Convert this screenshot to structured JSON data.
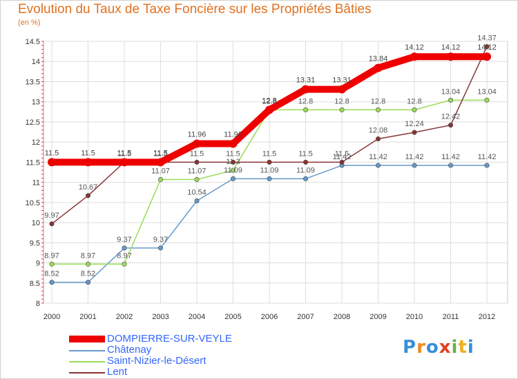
{
  "title": "Evolution du Taux de Taxe Foncière sur les Propriétés Bâties",
  "subtitle": "(en %)",
  "logo": {
    "letters": [
      "P",
      "r",
      "o",
      "x",
      "i",
      "t",
      "i"
    ],
    "colors": [
      "#3a8fd8",
      "#f08a20",
      "#3a8fd8",
      "#e04020",
      "#6ab04c",
      "#f0b020",
      "#3a8fd8"
    ]
  },
  "chart_data": {
    "type": "line",
    "x": [
      "2000",
      "2001",
      "2002",
      "2003",
      "2004",
      "2005",
      "2006",
      "2007",
      "2008",
      "2009",
      "2010",
      "2011",
      "2012"
    ],
    "ylim": [
      8,
      14.5
    ],
    "yticks": [
      "8",
      "8.5",
      "9",
      "9.5",
      "10",
      "10.5",
      "11",
      "11.5",
      "12",
      "12.5",
      "13",
      "13.5",
      "14",
      "14.5"
    ],
    "grid": true,
    "legend_position": "bottom-left",
    "series": [
      {
        "name": "DOMPIERRE-SUR-VEYLE",
        "color": "#ee0000",
        "values": [
          11.5,
          11.5,
          11.5,
          11.5,
          11.96,
          11.96,
          12.8,
          13.31,
          13.31,
          13.84,
          14.12,
          14.12,
          14.12
        ],
        "labels": [
          "11.5",
          "11.5",
          "11.5",
          "11.5",
          "11.96",
          "11.96",
          "12.8",
          "13.31",
          "13.31",
          "13.84",
          "14.12",
          "14.12",
          "14.12"
        ]
      },
      {
        "name": "Châtenay",
        "color": "#6699cc",
        "values": [
          8.52,
          8.52,
          9.37,
          9.37,
          10.54,
          11.09,
          11.09,
          11.09,
          11.42,
          11.42,
          11.42,
          11.42,
          11.42
        ],
        "labels": [
          "8.52",
          "8.52",
          "9.37",
          "9.37",
          "10.54",
          "11.09",
          "11.09",
          "11.09",
          "11.42",
          "11.42",
          "11.42",
          "11.42",
          "11.42"
        ]
      },
      {
        "name": "Saint-Nizier-le-Désert",
        "color": "#99dd55",
        "values": [
          8.97,
          8.97,
          8.97,
          11.07,
          11.07,
          11.3,
          12.8,
          12.8,
          12.8,
          12.8,
          12.8,
          13.04,
          13.04
        ],
        "labels": [
          "8.97",
          "8.97",
          "8.97",
          "11.07",
          "11.07",
          "11.3",
          "12.8",
          "12.8",
          "12.8",
          "12.8",
          "12.8",
          "13.04",
          "13.04"
        ]
      },
      {
        "name": "Lent",
        "color": "#883333",
        "values": [
          9.97,
          10.67,
          11.5,
          11.5,
          11.5,
          11.5,
          11.5,
          11.5,
          11.5,
          12.08,
          12.24,
          12.42,
          14.37
        ],
        "labels": [
          "9.97",
          "10.67",
          "11.5",
          "11.5",
          "11.5",
          "11.5",
          "11.5",
          "11.5",
          "11.5",
          "12.08",
          "12.24",
          "12.42",
          "14.37"
        ]
      }
    ]
  }
}
